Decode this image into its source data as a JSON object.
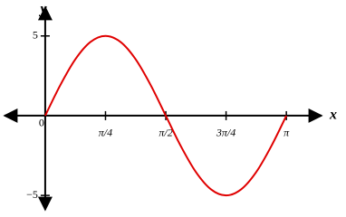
{
  "chart_data": {
    "type": "line",
    "x_label": "x",
    "y_label": "y",
    "x": [
      0,
      0.1963,
      0.3927,
      0.589,
      0.7854,
      0.9817,
      1.1781,
      1.3744,
      1.5708,
      1.7671,
      1.9635,
      2.1598,
      2.3562,
      2.5525,
      2.7489,
      2.9452,
      3.1416
    ],
    "series": [
      {
        "color": "#e00000",
        "values": [
          0,
          1.913,
          3.536,
          4.619,
          5,
          4.619,
          3.536,
          1.913,
          0,
          -1.913,
          -3.536,
          -4.619,
          -5,
          -4.619,
          -3.536,
          -1.913,
          0
        ]
      }
    ],
    "xlim": [
      -0.53,
      3.6
    ],
    "ylim": [
      -5.9,
      6.8
    ],
    "xticks": [
      0,
      {
        "value": 0.7854,
        "label": "π/4"
      },
      {
        "value": 1.5708,
        "label": "π/2"
      },
      {
        "value": 2.3562,
        "label": "3π/4"
      },
      {
        "value": 3.1416,
        "label": "π"
      }
    ],
    "yticks": [
      5,
      {
        "value": -5,
        "label": "−5"
      }
    ]
  }
}
